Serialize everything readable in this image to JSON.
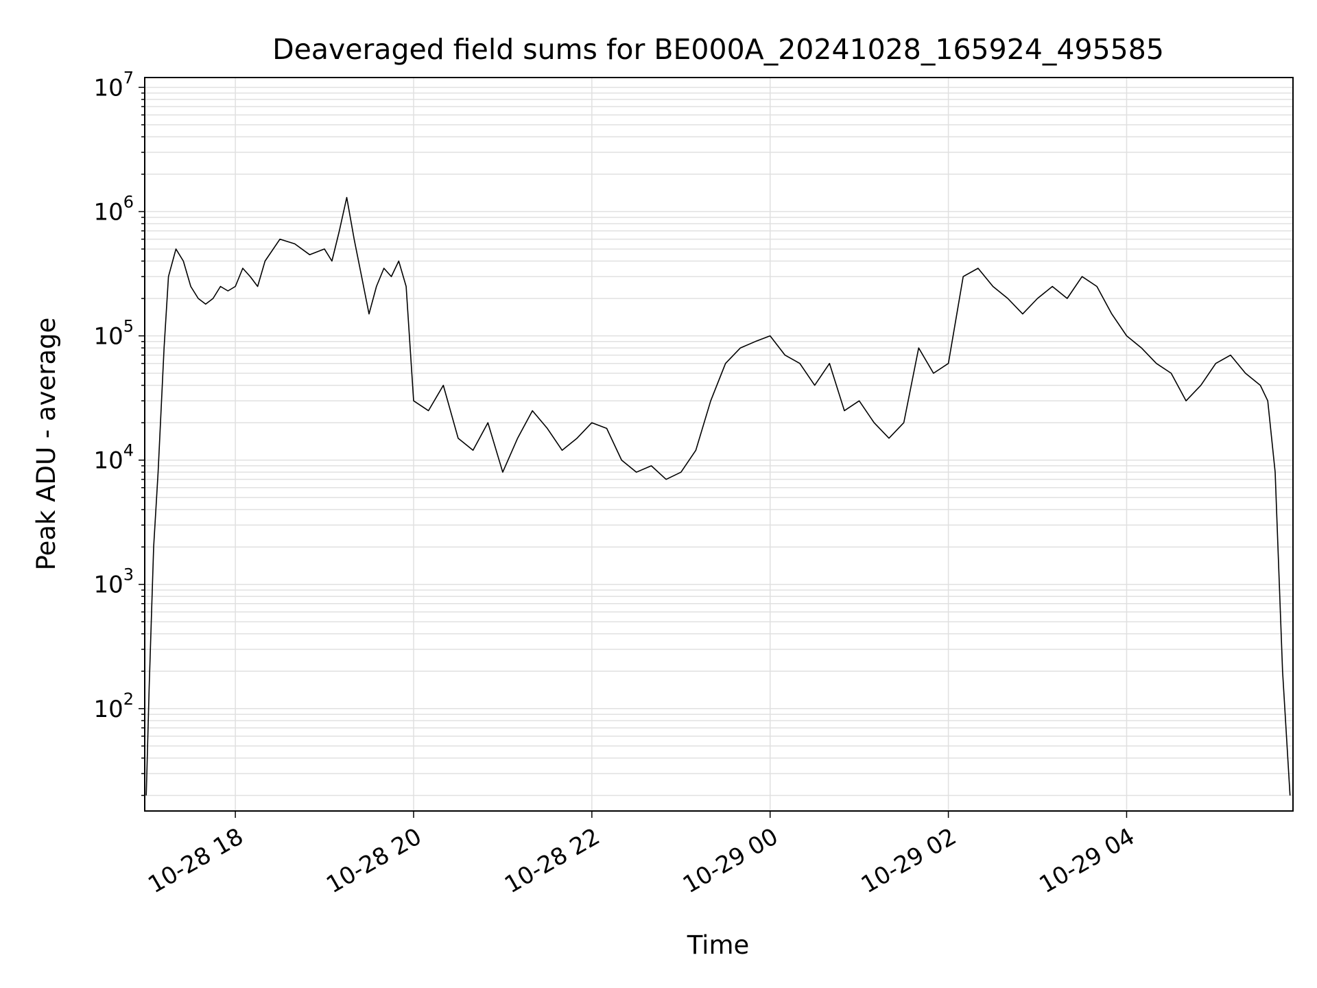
{
  "chart_data": {
    "type": "line",
    "title": "Deaveraged field sums for BE000A_20241028_165924_495585",
    "xlabel": "Time",
    "ylabel": "Peak ADU - average",
    "y_scale": "log",
    "ylim": [
      15,
      12000000
    ],
    "xlim": [
      "2024-10-28 16:59",
      "2024-10-29 05:52"
    ],
    "grid": true,
    "line_color": "#000000",
    "grid_color": "#e0e0e0",
    "x_ticks": [
      {
        "label": "10-28 18",
        "at": "2024-10-28 18:00"
      },
      {
        "label": "10-28 20",
        "at": "2024-10-28 20:00"
      },
      {
        "label": "10-28 22",
        "at": "2024-10-28 22:00"
      },
      {
        "label": "10-29 00",
        "at": "2024-10-29 00:00"
      },
      {
        "label": "10-29 02",
        "at": "2024-10-29 02:00"
      },
      {
        "label": "10-29 04",
        "at": "2024-10-29 04:00"
      }
    ],
    "y_ticks": [
      {
        "value": 100,
        "base": "10",
        "exp": "2"
      },
      {
        "value": 1000,
        "base": "10",
        "exp": "3"
      },
      {
        "value": 10000,
        "base": "10",
        "exp": "4"
      },
      {
        "value": 100000,
        "base": "10",
        "exp": "5"
      },
      {
        "value": 1000000,
        "base": "10",
        "exp": "6"
      },
      {
        "value": 10000000,
        "base": "10",
        "exp": "7"
      }
    ],
    "series": [
      {
        "x": [
          "2024-10-28 17:00",
          "2024-10-28 17:02",
          "2024-10-28 17:05",
          "2024-10-28 17:08",
          "2024-10-28 17:12",
          "2024-10-28 17:15",
          "2024-10-28 17:20",
          "2024-10-28 17:25",
          "2024-10-28 17:30",
          "2024-10-28 17:35",
          "2024-10-28 17:40",
          "2024-10-28 17:45",
          "2024-10-28 17:50",
          "2024-10-28 17:55",
          "2024-10-28 18:00",
          "2024-10-28 18:05",
          "2024-10-28 18:10",
          "2024-10-28 18:15",
          "2024-10-28 18:20",
          "2024-10-28 18:30",
          "2024-10-28 18:40",
          "2024-10-28 18:50",
          "2024-10-28 19:00",
          "2024-10-28 19:05",
          "2024-10-28 19:10",
          "2024-10-28 19:15",
          "2024-10-28 19:20",
          "2024-10-28 19:25",
          "2024-10-28 19:30",
          "2024-10-28 19:35",
          "2024-10-28 19:40",
          "2024-10-28 19:45",
          "2024-10-28 19:50",
          "2024-10-28 19:55",
          "2024-10-28 20:00",
          "2024-10-28 20:10",
          "2024-10-28 20:20",
          "2024-10-28 20:30",
          "2024-10-28 20:40",
          "2024-10-28 20:50",
          "2024-10-28 21:00",
          "2024-10-28 21:10",
          "2024-10-28 21:20",
          "2024-10-28 21:30",
          "2024-10-28 21:40",
          "2024-10-28 21:50",
          "2024-10-28 22:00",
          "2024-10-28 22:10",
          "2024-10-28 22:20",
          "2024-10-28 22:30",
          "2024-10-28 22:40",
          "2024-10-28 22:50",
          "2024-10-28 23:00",
          "2024-10-28 23:10",
          "2024-10-28 23:20",
          "2024-10-28 23:30",
          "2024-10-28 23:40",
          "2024-10-28 23:50",
          "2024-10-29 00:00",
          "2024-10-29 00:10",
          "2024-10-29 00:20",
          "2024-10-29 00:30",
          "2024-10-29 00:40",
          "2024-10-29 00:50",
          "2024-10-29 01:00",
          "2024-10-29 01:10",
          "2024-10-29 01:20",
          "2024-10-29 01:30",
          "2024-10-29 01:40",
          "2024-10-29 01:50",
          "2024-10-29 02:00",
          "2024-10-29 02:10",
          "2024-10-29 02:20",
          "2024-10-29 02:30",
          "2024-10-29 02:40",
          "2024-10-29 02:50",
          "2024-10-29 03:00",
          "2024-10-29 03:10",
          "2024-10-29 03:20",
          "2024-10-29 03:30",
          "2024-10-29 03:40",
          "2024-10-29 03:50",
          "2024-10-29 04:00",
          "2024-10-29 04:10",
          "2024-10-29 04:20",
          "2024-10-29 04:30",
          "2024-10-29 04:40",
          "2024-10-29 04:50",
          "2024-10-29 05:00",
          "2024-10-29 05:10",
          "2024-10-29 05:20",
          "2024-10-29 05:30",
          "2024-10-29 05:35",
          "2024-10-29 05:40",
          "2024-10-29 05:45",
          "2024-10-29 05:50"
        ],
        "y": [
          20,
          150,
          2000,
          8000,
          80000,
          300000,
          500000,
          400000,
          250000,
          200000,
          180000,
          200000,
          250000,
          230000,
          250000,
          350000,
          300000,
          250000,
          400000,
          600000,
          550000,
          450000,
          500000,
          400000,
          700000,
          1300000,
          600000,
          300000,
          150000,
          250000,
          350000,
          300000,
          400000,
          250000,
          30000,
          25000,
          40000,
          15000,
          12000,
          20000,
          8000,
          15000,
          25000,
          18000,
          12000,
          15000,
          20000,
          18000,
          10000,
          8000,
          9000,
          7000,
          8000,
          12000,
          30000,
          60000,
          80000,
          90000,
          100000,
          70000,
          60000,
          40000,
          60000,
          25000,
          30000,
          20000,
          15000,
          20000,
          80000,
          50000,
          60000,
          300000,
          350000,
          250000,
          200000,
          150000,
          200000,
          250000,
          200000,
          300000,
          250000,
          150000,
          100000,
          80000,
          60000,
          50000,
          30000,
          40000,
          60000,
          70000,
          50000,
          40000,
          30000,
          8000,
          200,
          20
        ]
      }
    ]
  }
}
